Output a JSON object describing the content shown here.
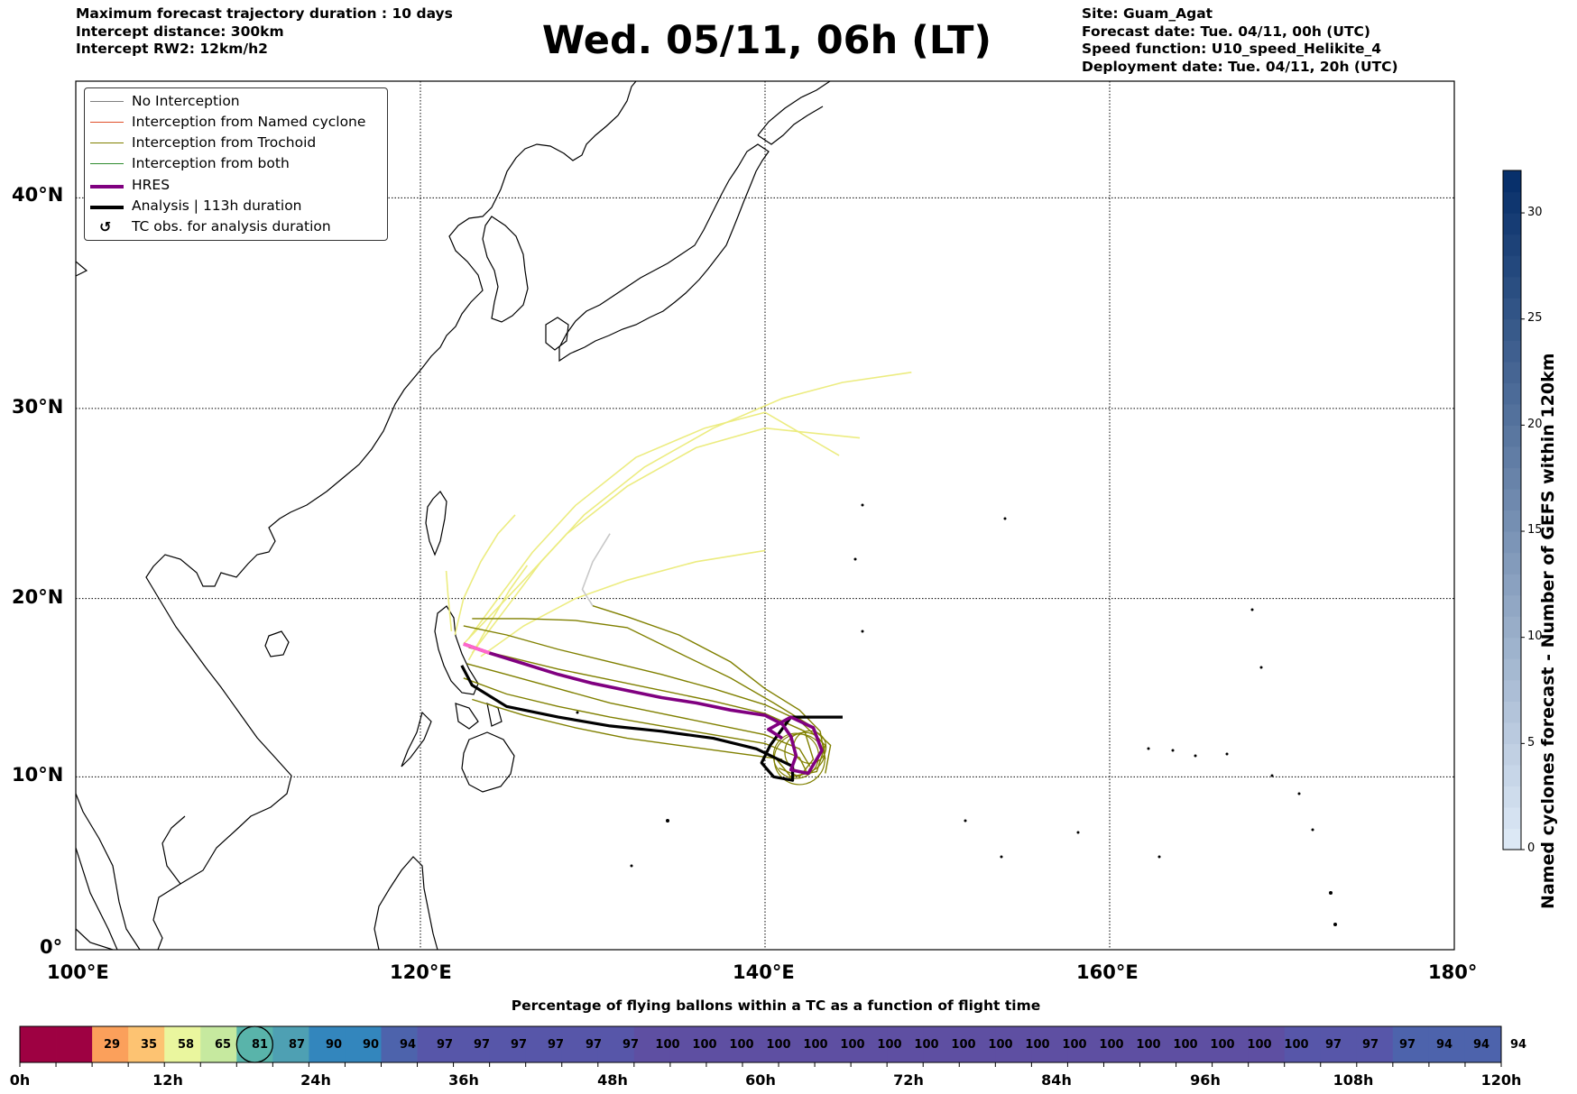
{
  "header_left": [
    "Maximum forecast trajectory duration : 10 days",
    "Intercept distance: 300km",
    "Intercept RW2: 12km/h2"
  ],
  "title": "Wed. 05/11, 06h (LT)",
  "header_right": [
    "Site: Guam_Agat",
    "Forecast date: Tue. 04/11, 00h (UTC)",
    "Speed function: U10_speed_Helikite_4",
    "Deployment date: Tue. 04/11, 20h (UTC)"
  ],
  "legend": [
    {
      "label": "No Interception",
      "color": "#808080",
      "style": "thin"
    },
    {
      "label": "Interception from Named cyclone",
      "color": "#e0502a",
      "style": "thin"
    },
    {
      "label": "Interception from Trochoid",
      "color": "#808000",
      "style": "thin"
    },
    {
      "label": "Interception from both",
      "color": "#2e8b2e",
      "style": "thin"
    },
    {
      "label": "HRES",
      "color": "#800080",
      "style": "thick"
    },
    {
      "label": "Analysis | 113h duration",
      "color": "#000000",
      "style": "thick"
    },
    {
      "label": "TC obs. for analysis duration",
      "color": "#000000",
      "style": "symbol",
      "symbol": "↺"
    }
  ],
  "map": {
    "lon_range": [
      100,
      180
    ],
    "lat_range": [
      0,
      45
    ],
    "lon_ticks": [
      "100°E",
      "120°E",
      "140°E",
      "160°E",
      "180°"
    ],
    "lat_ticks": [
      "0°",
      "10°N",
      "20°N",
      "30°N",
      "40°N"
    ],
    "lon_tick_values": [
      100,
      120,
      140,
      160,
      180
    ],
    "lat_tick_values": [
      0,
      10,
      20,
      30,
      40
    ],
    "gridlines": true,
    "colors": {
      "coast": "#000000",
      "no_interception": "#c8c8c8",
      "trochoid": "#808000",
      "yellow_tracks": "#ecec80",
      "hres": "#800080",
      "hres_start": "#ff66cc",
      "analysis": "#000000"
    },
    "hres_track": [
      [
        122.5,
        17.5
      ],
      [
        124,
        17
      ],
      [
        126,
        16.4
      ],
      [
        128,
        15.8
      ],
      [
        130,
        15.3
      ],
      [
        132,
        14.9
      ],
      [
        134,
        14.5
      ],
      [
        136,
        14.2
      ],
      [
        138,
        13.8
      ],
      [
        140,
        13.5
      ],
      [
        141,
        13
      ],
      [
        141.5,
        12.3
      ],
      [
        141.8,
        11.2
      ],
      [
        141.5,
        10.4
      ],
      [
        142.5,
        10.2
      ],
      [
        143.3,
        11.5
      ],
      [
        142.8,
        12.8
      ],
      [
        141.5,
        13.4
      ],
      [
        140.2,
        12.7
      ],
      [
        141,
        12.2
      ]
    ],
    "analysis_track": [
      [
        144.5,
        13.4
      ],
      [
        141.5,
        13.4
      ],
      [
        140.3,
        11.8
      ],
      [
        139.8,
        10.8
      ],
      [
        140.5,
        10
      ],
      [
        141.6,
        9.8
      ],
      [
        141.6,
        10.6
      ],
      [
        139.5,
        11.6
      ],
      [
        137,
        12.2
      ],
      [
        134,
        12.6
      ],
      [
        131,
        12.9
      ],
      [
        128,
        13.4
      ],
      [
        125,
        14
      ],
      [
        123,
        15.2
      ],
      [
        122.4,
        16.3
      ]
    ],
    "yellow_tracks": [
      [
        [
          122,
          18
        ],
        [
          122.5,
          20
        ],
        [
          123.5,
          22
        ],
        [
          124.5,
          23.5
        ],
        [
          125.5,
          24.5
        ]
      ],
      [
        [
          122.5,
          17.5
        ],
        [
          124,
          19
        ],
        [
          126,
          21
        ],
        [
          128.5,
          23.5
        ],
        [
          132,
          26
        ],
        [
          136,
          28
        ],
        [
          140,
          29
        ],
        [
          145.5,
          28.5
        ]
      ],
      [
        [
          123,
          17
        ],
        [
          125,
          19.5
        ],
        [
          127,
          22
        ],
        [
          129.5,
          24.5
        ],
        [
          133,
          27
        ],
        [
          137,
          29
        ],
        [
          141,
          30.5
        ],
        [
          144.5,
          31.3
        ],
        [
          148.5,
          31.8
        ]
      ],
      [
        [
          122.8,
          17.8
        ],
        [
          124.5,
          20
        ],
        [
          126.5,
          22.5
        ],
        [
          129,
          25
        ],
        [
          132.5,
          27.5
        ],
        [
          136.5,
          29
        ],
        [
          140,
          29.8
        ],
        [
          144.3,
          27.6
        ]
      ],
      [
        [
          123.5,
          16.8
        ],
        [
          126,
          18.5
        ],
        [
          129,
          20
        ],
        [
          132,
          21
        ],
        [
          136,
          22
        ],
        [
          140,
          22.6
        ]
      ],
      [
        [
          121.8,
          18.2
        ],
        [
          121.6,
          20.2
        ],
        [
          121.5,
          21.5
        ]
      ],
      [
        [
          122.8,
          16.6
        ],
        [
          124,
          18.6
        ],
        [
          125.2,
          20.5
        ],
        [
          126.2,
          21.8
        ]
      ]
    ],
    "grey_track": [
      [
        130,
        19.6
      ],
      [
        129.4,
        20.5
      ],
      [
        130,
        22
      ],
      [
        131,
        23.5
      ]
    ],
    "trochoid_tracks": [
      [
        [
          122.5,
          18.5
        ],
        [
          125,
          18
        ],
        [
          128,
          17.2
        ],
        [
          131,
          16.5
        ],
        [
          134,
          15.8
        ],
        [
          137,
          15
        ],
        [
          140,
          14.1
        ],
        [
          142,
          13.2
        ],
        [
          143.5,
          11.8
        ],
        [
          143,
          10.3
        ],
        [
          141.5,
          10
        ],
        [
          140.5,
          11.2
        ]
      ],
      [
        [
          122.8,
          17.3
        ],
        [
          125,
          16.8
        ],
        [
          128,
          16.1
        ],
        [
          131,
          15.5
        ],
        [
          134,
          14.9
        ],
        [
          137,
          14.3
        ],
        [
          140,
          13.6
        ],
        [
          142.3,
          12.6
        ],
        [
          142.8,
          11
        ],
        [
          142,
          10
        ],
        [
          140.8,
          10.5
        ]
      ],
      [
        [
          122.5,
          15.6
        ],
        [
          125,
          14.7
        ],
        [
          128,
          14
        ],
        [
          131,
          13.4
        ],
        [
          134,
          12.9
        ],
        [
          137,
          12.4
        ],
        [
          140,
          11.9
        ],
        [
          142,
          11.1
        ],
        [
          142.4,
          10.3
        ]
      ],
      [
        [
          123,
          14.4
        ],
        [
          126,
          13.5
        ],
        [
          129,
          12.8
        ],
        [
          132,
          12.2
        ],
        [
          135,
          11.8
        ],
        [
          138,
          11.4
        ],
        [
          141,
          11
        ]
      ],
      [
        [
          130,
          19.6
        ],
        [
          132,
          19
        ],
        [
          135,
          18
        ],
        [
          138,
          16.5
        ],
        [
          140,
          15
        ],
        [
          142,
          13.8
        ],
        [
          143.2,
          12.6
        ],
        [
          143.5,
          11
        ]
      ],
      [
        [
          123,
          18.9
        ],
        [
          126,
          18.9
        ],
        [
          129,
          18.8
        ],
        [
          132,
          18.4
        ],
        [
          135,
          17
        ],
        [
          138,
          15.6
        ],
        [
          140.5,
          14.2
        ],
        [
          142.5,
          13
        ],
        [
          143.8,
          11.8
        ],
        [
          143.5,
          10.2
        ]
      ],
      [
        [
          122.7,
          16.4
        ],
        [
          125,
          15.8
        ],
        [
          128,
          15
        ],
        [
          131,
          14.2
        ],
        [
          134,
          13.6
        ],
        [
          137,
          13
        ],
        [
          140,
          12.4
        ],
        [
          142,
          11.6
        ],
        [
          142.6,
          10.6
        ]
      ]
    ]
  },
  "colorbar": {
    "label": "Named cyclones forecast - Number of GEFS within 120km",
    "min": 0,
    "max": 32,
    "ticks": [
      "0",
      "5",
      "10",
      "15",
      "20",
      "25",
      "30"
    ],
    "tick_values": [
      0,
      5,
      10,
      15,
      20,
      25,
      30
    ]
  },
  "timeline": {
    "title": "Percentage of flying ballons within a TC as a function of flight time",
    "values": [
      "",
      "",
      "29",
      "35",
      "58",
      "65",
      "81",
      "87",
      "90",
      "90",
      "94",
      "97",
      "97",
      "97",
      "97",
      "97",
      "97",
      "100",
      "100",
      "100",
      "100",
      "100",
      "100",
      "100",
      "100",
      "100",
      "100",
      "100",
      "100",
      "100",
      "100",
      "100",
      "100",
      "100",
      "100",
      "97",
      "97",
      "97",
      "94",
      "94",
      "94"
    ],
    "colors": [
      "#9e0142",
      "#9e0142",
      "#fba05b",
      "#fdc372",
      "#eaf69e",
      "#c6e99f",
      "#59b4aa",
      "#4ea0b3",
      "#3386bd",
      "#3386bd",
      "#4d63ac",
      "#5756a9",
      "#5756a9",
      "#5756a9",
      "#5756a9",
      "#5756a9",
      "#5756a9",
      "#5e4fa2",
      "#5e4fa2",
      "#5e4fa2",
      "#5e4fa2",
      "#5e4fa2",
      "#5e4fa2",
      "#5e4fa2",
      "#5e4fa2",
      "#5e4fa2",
      "#5e4fa2",
      "#5e4fa2",
      "#5e4fa2",
      "#5e4fa2",
      "#5e4fa2",
      "#5e4fa2",
      "#5e4fa2",
      "#5e4fa2",
      "#5e4fa2",
      "#5756a9",
      "#5756a9",
      "#5756a9",
      "#4d63ac",
      "#4d63ac",
      "#4d63ac"
    ],
    "highlighted_index": 6,
    "tick_labels": [
      "0h",
      "12h",
      "24h",
      "36h",
      "48h",
      "60h",
      "72h",
      "84h",
      "96h",
      "108h",
      "120h"
    ]
  }
}
